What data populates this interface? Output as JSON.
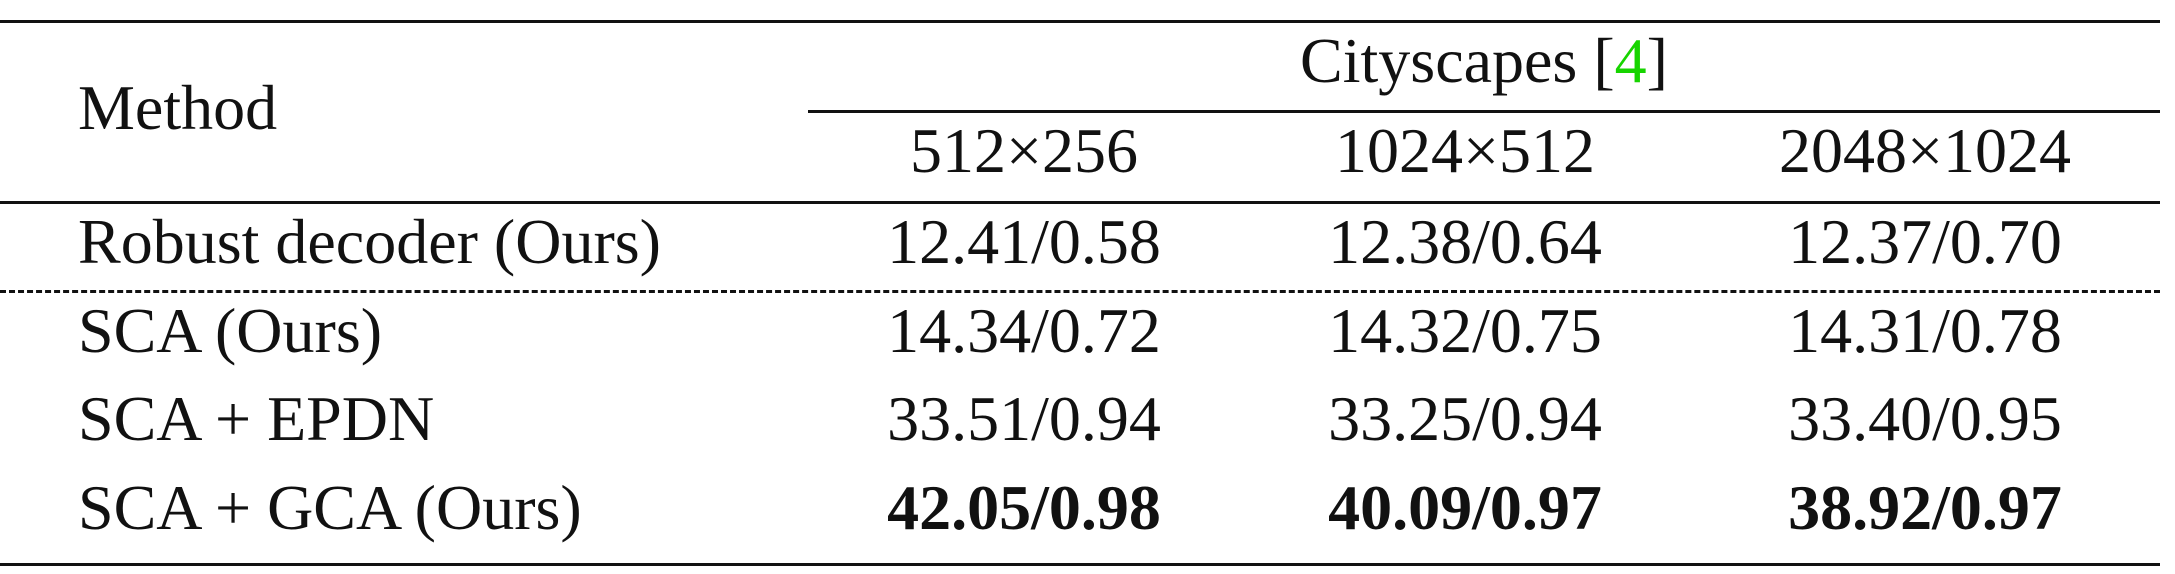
{
  "table": {
    "method_header": "Method",
    "dataset_prefix": "Cityscapes [",
    "dataset_ref": "4",
    "dataset_suffix": "]",
    "resolutions": [
      "512×256",
      "1024×512",
      "2048×1024"
    ],
    "rows": [
      {
        "method": "Robust decoder (Ours)",
        "values": [
          "12.41/0.58",
          "12.38/0.64",
          "12.37/0.70"
        ],
        "bold": false
      },
      {
        "method": "SCA (Ours)",
        "values": [
          "14.34/0.72",
          "14.32/0.75",
          "14.31/0.78"
        ],
        "bold": false
      },
      {
        "method": "SCA + EPDN",
        "values": [
          "33.51/0.94",
          "33.25/0.94",
          "33.40/0.95"
        ],
        "bold": false
      },
      {
        "method": "SCA + GCA (Ours)",
        "values": [
          "42.05/0.98",
          "40.09/0.97",
          "38.92/0.97"
        ],
        "bold": true
      }
    ],
    "colors": {
      "reference_link": "#17d400",
      "text": "#111111",
      "rules": "#111111"
    }
  }
}
